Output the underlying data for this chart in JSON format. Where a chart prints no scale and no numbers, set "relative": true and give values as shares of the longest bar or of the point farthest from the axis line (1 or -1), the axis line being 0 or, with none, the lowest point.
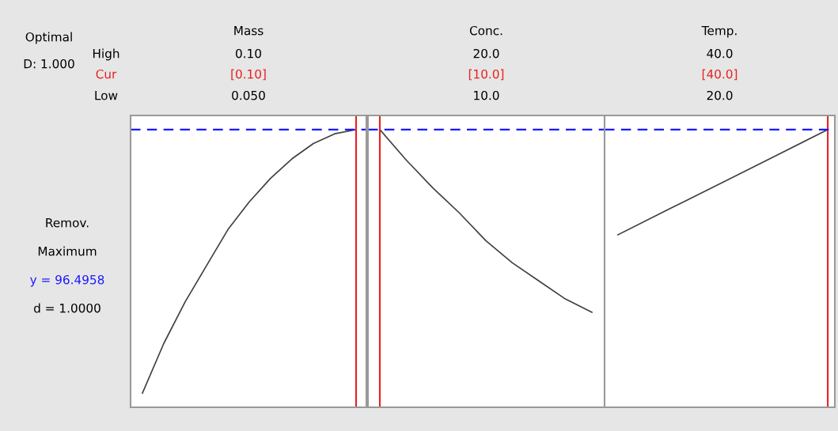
{
  "chart_data": [
    {
      "type": "other",
      "annotations": [
        "Optimal",
        "D: 1.000",
        "High",
        "Cur",
        "Low",
        "Remov.",
        "Maximum",
        "y = 96.4958",
        "d = 1.0000"
      ]
    },
    {
      "type": "line",
      "title": "Mass",
      "annotations": [
        "0.10",
        "[0.10]",
        "0.050"
      ],
      "relative": true,
      "categories": [
        null,
        null,
        null,
        null,
        null,
        null,
        null,
        null,
        null,
        null,
        null
      ],
      "series": [
        {
          "color": "#404040",
          "values": [
            0.051,
            0.23,
            0.38,
            0.51,
            0.64,
            0.74,
            0.825,
            0.895,
            0.95,
            0.985,
            1.0
          ]
        }
      ],
      "ref_lines": [
        {
          "axis": "y",
          "value": 1,
          "color": "#1a1aff",
          "line_style": "dashed"
        }
      ]
    },
    {
      "type": "line",
      "title": "Conc.",
      "annotations": [
        "20.0",
        "[10.0]",
        "10.0"
      ],
      "relative": true,
      "categories": [
        null,
        null,
        null,
        null,
        null,
        null,
        null,
        null,
        null
      ],
      "series": [
        {
          "color": "#404040",
          "values": [
            1.0,
            0.89,
            0.79,
            0.7,
            0.6,
            0.52,
            0.455,
            0.39,
            0.342
          ]
        }
      ],
      "ref_lines": [
        {
          "axis": "y",
          "value": 1,
          "color": "#1a1aff",
          "line_style": "dashed"
        }
      ]
    },
    {
      "type": "line",
      "title": "Temp.",
      "annotations": [
        "40.0",
        "[40.0]",
        "20.0"
      ],
      "relative": true,
      "categories": [
        null,
        null,
        null,
        null,
        null
      ],
      "series": [
        {
          "color": "#404040",
          "values": [
            0.621,
            0.716,
            0.81,
            0.905,
            1.0
          ]
        }
      ],
      "ref_lines": [
        {
          "axis": "y",
          "value": 1,
          "color": "#1a1aff",
          "line_style": "dashed"
        }
      ]
    }
  ]
}
